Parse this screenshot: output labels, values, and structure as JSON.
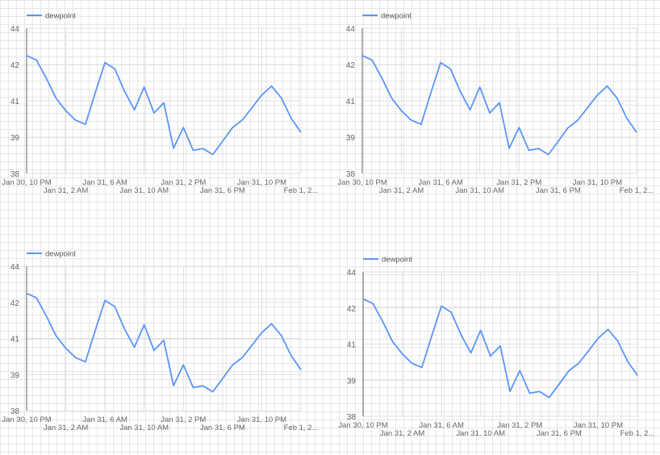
{
  "chart_data": [
    {
      "type": "line",
      "legend_position": "top-left",
      "color": "#5b95f9",
      "series": [
        {
          "name": "dewpoint",
          "values": [
            42.87,
            42.69,
            41.94,
            41.11,
            40.59,
            40.2,
            40.03,
            41.33,
            42.58,
            42.32,
            41.39,
            40.63,
            41.57,
            40.5,
            40.92,
            39.04,
            39.9,
            38.96,
            39.03,
            38.78,
            39.33,
            39.89,
            40.2,
            40.72,
            41.24,
            41.61,
            41.12,
            40.28,
            39.7
          ]
        }
      ],
      "x_start": "Jan 30, 10 PM",
      "x_step": "1 hour",
      "x_tick_labels": [
        "Jan 30, 10 PM",
        "Jan 31, 2 AM",
        "Jan 31, 6 AM",
        "Jan 31, 10 AM",
        "Jan 31, 2 PM",
        "Jan 31, 6 PM",
        "Jan 31, 10 PM",
        "Feb 1, 2..."
      ],
      "y_tick_labels": [
        "38",
        "39",
        "41",
        "42",
        "44"
      ],
      "ylim": [
        38,
        44
      ],
      "grid": true
    },
    {
      "type": "line",
      "legend_position": "top-left",
      "color": "#5b95f9",
      "series": [
        {
          "name": "dewpoint",
          "values": [
            42.87,
            42.69,
            41.94,
            41.11,
            40.59,
            40.2,
            40.03,
            41.33,
            42.58,
            42.32,
            41.39,
            40.63,
            41.57,
            40.5,
            40.92,
            39.04,
            39.9,
            38.96,
            39.03,
            38.78,
            39.33,
            39.89,
            40.2,
            40.72,
            41.24,
            41.61,
            41.12,
            40.28,
            39.7
          ]
        }
      ],
      "x_start": "Jan 30, 10 PM",
      "x_step": "1 hour",
      "x_tick_labels": [
        "Jan 30, 10 PM",
        "Jan 31, 2 AM",
        "Jan 31, 6 AM",
        "Jan 31, 10 AM",
        "Jan 31, 2 PM",
        "Jan 31, 6 PM",
        "Jan 31, 10 PM",
        "Feb 1, 2..."
      ],
      "y_tick_labels": [
        "38",
        "39",
        "41",
        "42",
        "44"
      ],
      "ylim": [
        38,
        44
      ],
      "grid": true
    },
    {
      "type": "line",
      "legend_position": "top-left",
      "color": "#5b95f9",
      "series": [
        {
          "name": "dewpoint",
          "values": [
            42.87,
            42.69,
            41.94,
            41.11,
            40.59,
            40.2,
            40.03,
            41.33,
            42.58,
            42.32,
            41.39,
            40.63,
            41.57,
            40.5,
            40.92,
            39.04,
            39.9,
            38.96,
            39.03,
            38.78,
            39.33,
            39.89,
            40.2,
            40.72,
            41.24,
            41.61,
            41.12,
            40.28,
            39.7
          ]
        }
      ],
      "x_start": "Jan 30, 10 PM",
      "x_step": "1 hour",
      "x_tick_labels": [
        "Jan 30, 10 PM",
        "Jan 31, 2 AM",
        "Jan 31, 6 AM",
        "Jan 31, 10 AM",
        "Jan 31, 2 PM",
        "Jan 31, 6 PM",
        "Jan 31, 10 PM",
        "Feb 1, 2..."
      ],
      "y_tick_labels": [
        "38",
        "39",
        "41",
        "42",
        "44"
      ],
      "ylim": [
        38,
        44
      ],
      "grid": true
    },
    {
      "type": "line",
      "legend_position": "top-left",
      "color": "#5b95f9",
      "series": [
        {
          "name": "dewpoint",
          "values": [
            42.87,
            42.69,
            41.94,
            41.11,
            40.59,
            40.2,
            40.03,
            41.33,
            42.58,
            42.32,
            41.39,
            40.63,
            41.57,
            40.5,
            40.92,
            39.04,
            39.9,
            38.96,
            39.03,
            38.78,
            39.33,
            39.89,
            40.2,
            40.72,
            41.24,
            41.61,
            41.12,
            40.28,
            39.7
          ]
        }
      ],
      "x_start": "Jan 30, 10 PM",
      "x_step": "1 hour",
      "x_tick_labels": [
        "Jan 30, 10 PM",
        "Jan 31, 2 AM",
        "Jan 31, 6 AM",
        "Jan 31, 10 AM",
        "Jan 31, 2 PM",
        "Jan 31, 6 PM",
        "Jan 31, 10 PM",
        "Feb 1, 2..."
      ],
      "y_tick_labels": [
        "38",
        "39",
        "41",
        "42",
        "44"
      ],
      "ylim": [
        38,
        44
      ],
      "grid": true
    }
  ]
}
